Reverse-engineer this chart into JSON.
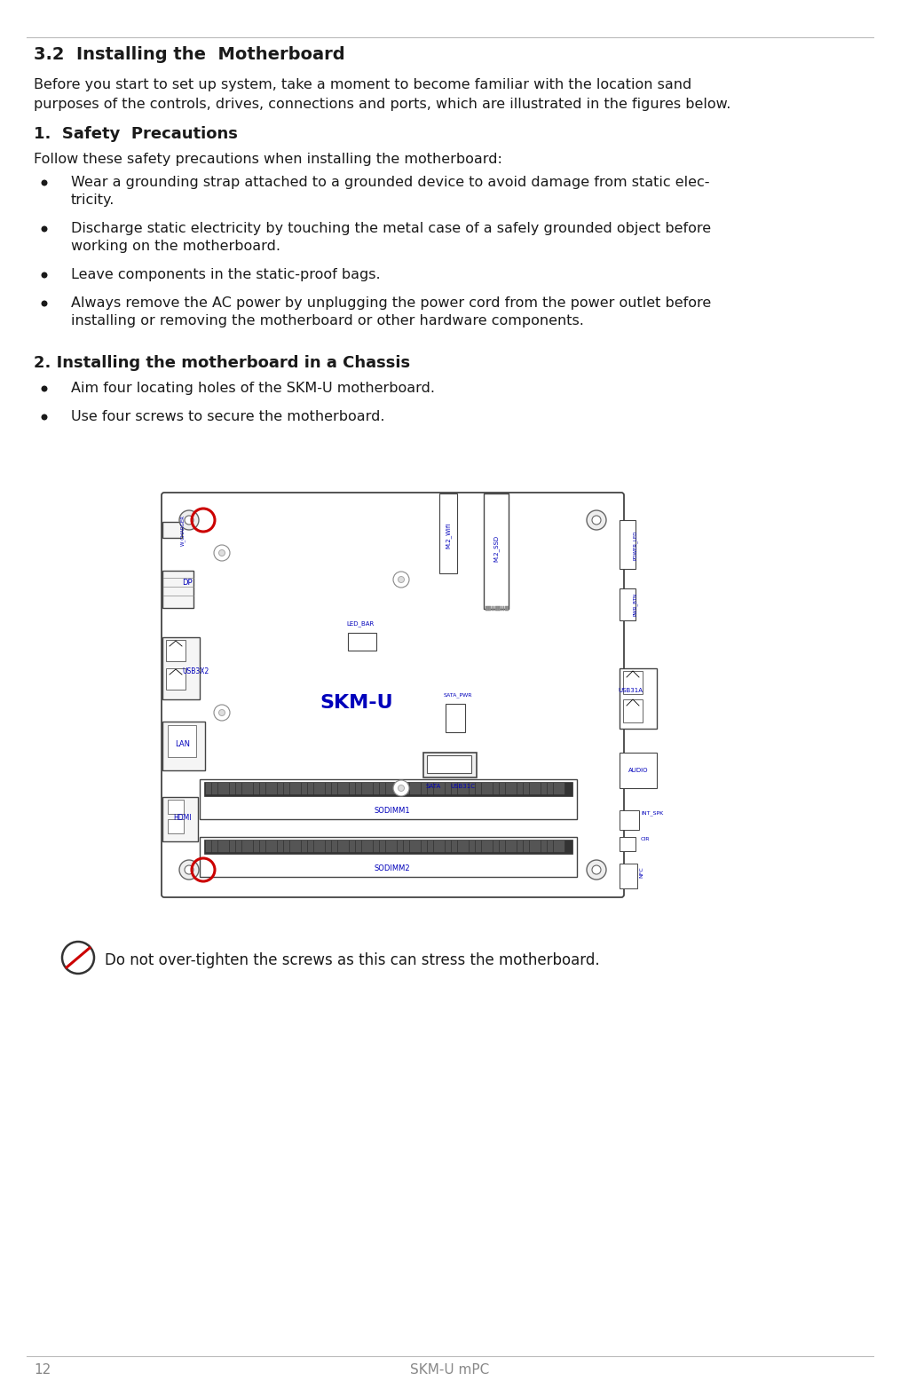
{
  "bg_color": "#ffffff",
  "text_color": "#1a1a1a",
  "blue_color": "#0000bb",
  "red_color": "#cc0000",
  "page_number": "12",
  "footer_text": "SKM-U mPC",
  "main_heading": "3.2  Installing the  Motherboard",
  "intro_line1": "Before you start to set up system, take a moment to become familiar with the location sand",
  "intro_line2": "purposes of the controls, drives, connections and ports, which are illustrated in the figures below.",
  "section1_heading": "1.  Safety  Precautions",
  "section1_intro": "Follow these safety precautions when installing the motherboard:",
  "section1_bullets": [
    [
      "Wear a grounding strap attached to a grounded device to avoid damage from static elec-",
      "tricity."
    ],
    [
      "Discharge static electricity by touching the metal case of a safely grounded object before",
      "working on the motherboard."
    ],
    [
      "Leave components in the static-proof bags."
    ],
    [
      "Always remove the AC power by unplugging the power cord from the power outlet before",
      "installing or removing the motherboard or other hardware components."
    ]
  ],
  "section2_heading": "2. Installing the motherboard in a Chassis",
  "section2_bullets": [
    [
      "Aim four locating holes of the SKM-U motherboard."
    ],
    [
      "Use four screws to secure the motherboard."
    ]
  ],
  "warning_text": "Do not over-tighten the screws as this can stress the motherboard.",
  "board_label": "SKM-U"
}
